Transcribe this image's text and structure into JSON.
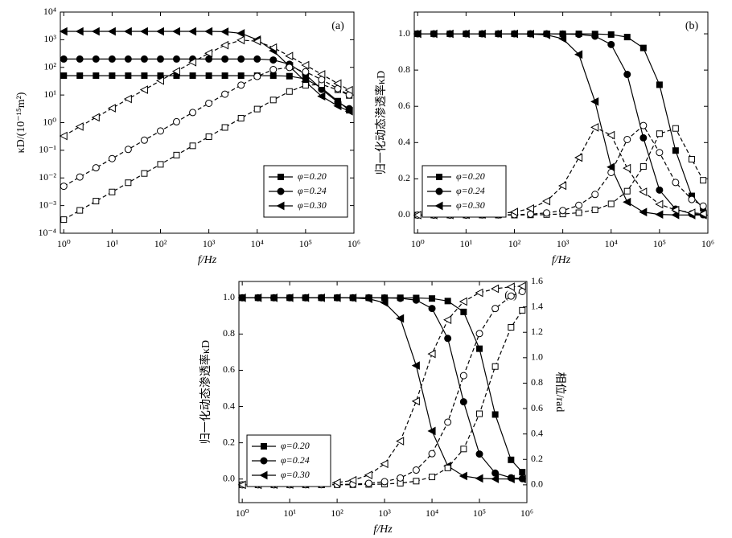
{
  "chart_data": [
    {
      "type": "line",
      "annotation": "(a)",
      "x_label": "f/Hz",
      "y_label": "κD/(10⁻¹⁵m²)",
      "ylog": true,
      "xlog": true,
      "legend": "lower right",
      "xlim": [
        0.85,
        1000000
      ],
      "ylim": [
        0.0001,
        10000
      ],
      "xticks": [
        {
          "value": 1,
          "label": "10⁰"
        },
        {
          "value": 10,
          "label": "10¹"
        },
        {
          "value": 100,
          "label": "10²"
        },
        {
          "value": 1000,
          "label": "10³"
        },
        {
          "value": 10000,
          "label": "10⁴"
        },
        {
          "value": 100000,
          "label": "10⁵"
        },
        {
          "value": 1000000,
          "label": "10⁶"
        }
      ],
      "yticks": [
        {
          "value": 0.0001,
          "label": "10⁻⁴"
        },
        {
          "value": 0.001,
          "label": "10⁻³"
        },
        {
          "value": 0.01,
          "label": "10⁻²"
        },
        {
          "value": 0.1,
          "label": "10⁻¹"
        },
        {
          "value": 1,
          "label": "10⁰"
        },
        {
          "value": 10,
          "label": "10¹"
        },
        {
          "value": 100,
          "label": "10²"
        },
        {
          "value": 1000,
          "label": "10³"
        },
        {
          "value": 10000,
          "label": "10⁴"
        }
      ],
      "x": [
        1,
        2.15,
        4.64,
        10,
        21.5,
        46.4,
        100,
        215,
        464,
        1000,
        2150,
        4640,
        10000,
        21500,
        46400,
        100000,
        215000,
        464000,
        800000
      ],
      "series": [
        {
          "name": "φ=0.20",
          "color": "#000000",
          "marker": "square",
          "filled": true,
          "dash": false,
          "values": [
            50,
            50,
            50,
            50,
            50,
            50,
            50,
            50,
            50,
            50,
            50,
            50,
            50,
            50,
            48,
            38,
            18,
            6,
            2.8
          ]
        },
        {
          "name": "φ=0.24",
          "color": "#000000",
          "marker": "circle",
          "filled": true,
          "dash": false,
          "values": [
            200,
            200,
            200,
            200,
            200,
            200,
            200,
            200,
            200,
            200,
            200,
            200,
            200,
            185,
            130,
            55,
            16,
            5.5,
            3.2
          ]
        },
        {
          "name": "φ=0.30",
          "color": "#000000",
          "marker": "triangle-left",
          "filled": true,
          "dash": false,
          "values": [
            2000,
            2000,
            2000,
            2000,
            2000,
            2000,
            2000,
            2000,
            2000,
            2000,
            1950,
            1700,
            1000,
            400,
            110,
            30,
            9,
            4,
            2.6
          ]
        },
        {
          "color": "#000000",
          "marker": "square",
          "filled": false,
          "dash": true,
          "values": [
            0.00031,
            0.00067,
            0.00145,
            0.0031,
            0.0067,
            0.0145,
            0.031,
            0.067,
            0.145,
            0.31,
            0.67,
            1.45,
            3.1,
            6.6,
            13.4,
            22.5,
            24,
            15.4,
            9.6
          ]
        },
        {
          "color": "#000000",
          "marker": "circle",
          "filled": false,
          "dash": true,
          "values": [
            0.005,
            0.0108,
            0.0232,
            0.05,
            0.1075,
            0.232,
            0.5,
            1.075,
            2.32,
            5.0,
            10.7,
            22.8,
            47,
            83,
            99,
            69,
            36,
            17,
            10
          ]
        },
        {
          "color": "#000000",
          "marker": "triangle-left",
          "filled": false,
          "dash": true,
          "values": [
            0.33,
            0.72,
            1.55,
            3.33,
            7.2,
            15.5,
            33,
            72,
            154,
            324,
            634,
            968,
            882,
            518,
            256,
            120,
            56,
            26,
            15
          ]
        }
      ]
    },
    {
      "type": "line",
      "annotation": "(b)",
      "x_label": "f/Hz",
      "y_label": "归一化动态渗透率κD",
      "ylog": false,
      "xlog": true,
      "legend": "lower left",
      "xlim": [
        0.85,
        1000000
      ],
      "ylim": [
        -0.1,
        1.12
      ],
      "xticks": [
        {
          "value": 1,
          "label": "10⁰"
        },
        {
          "value": 10,
          "label": "10¹"
        },
        {
          "value": 100,
          "label": "10²"
        },
        {
          "value": 1000,
          "label": "10³"
        },
        {
          "value": 10000,
          "label": "10⁴"
        },
        {
          "value": 100000,
          "label": "10⁵"
        },
        {
          "value": 1000000,
          "label": "10⁶"
        }
      ],
      "yticks": [
        {
          "value": 0,
          "label": "0.0"
        },
        {
          "value": 0.2,
          "label": "0.2"
        },
        {
          "value": 0.4,
          "label": "0.4"
        },
        {
          "value": 0.6,
          "label": "0.6"
        },
        {
          "value": 0.8,
          "label": "0.8"
        },
        {
          "value": 1,
          "label": "1.0"
        }
      ],
      "x": [
        1,
        2.15,
        4.64,
        10,
        21.5,
        46.4,
        100,
        215,
        464,
        1000,
        2150,
        4640,
        10000,
        21500,
        46400,
        100000,
        215000,
        464000,
        800000
      ],
      "series": [
        {
          "name": "φ=0.20",
          "color": "#000000",
          "marker": "square",
          "filled": true,
          "dash": false,
          "values": [
            1,
            1,
            1,
            1,
            1,
            1,
            1,
            1,
            1,
            1,
            1,
            0.999,
            0.996,
            0.982,
            0.922,
            0.719,
            0.356,
            0.106,
            0.038
          ]
        },
        {
          "name": "φ=0.24",
          "color": "#000000",
          "marker": "circle",
          "filled": true,
          "dash": false,
          "values": [
            1,
            1,
            1,
            1,
            1,
            1,
            1,
            1,
            1,
            0.999,
            0.997,
            0.987,
            0.941,
            0.776,
            0.426,
            0.138,
            0.033,
            0.007,
            0.002
          ]
        },
        {
          "name": "φ=0.30",
          "color": "#000000",
          "marker": "triangle-left",
          "filled": true,
          "dash": false,
          "values": [
            1,
            1,
            1,
            1,
            1,
            1,
            1,
            0.999,
            0.994,
            0.973,
            0.886,
            0.626,
            0.265,
            0.072,
            0.0165,
            0.0036,
            0.0008,
            0.0002,
            0.0001
          ]
        },
        {
          "color": "#000000",
          "marker": "square",
          "filled": false,
          "dash": true,
          "values": [
            0,
            0,
            0,
            0,
            0,
            0,
            0,
            0.001,
            0.003,
            0.006,
            0.013,
            0.029,
            0.062,
            0.132,
            0.268,
            0.449,
            0.478,
            0.308,
            0.192
          ]
        },
        {
          "color": "#000000",
          "marker": "circle",
          "filled": false,
          "dash": true,
          "values": [
            0,
            0,
            0,
            0,
            0.001,
            0.001,
            0.0025,
            0.005,
            0.012,
            0.025,
            0.054,
            0.114,
            0.235,
            0.417,
            0.494,
            0.345,
            0.18,
            0.086,
            0.05
          ]
        },
        {
          "color": "#000000",
          "marker": "triangle-left",
          "filled": false,
          "dash": true,
          "values": [
            0.0002,
            0.0004,
            0.0008,
            0.0017,
            0.0036,
            0.0077,
            0.017,
            0.036,
            0.077,
            0.162,
            0.317,
            0.484,
            0.441,
            0.259,
            0.128,
            0.06,
            0.028,
            0.013,
            0.0075
          ]
        }
      ]
    },
    {
      "type": "line",
      "annotation": "(c)",
      "x_label": "f/Hz",
      "y_label": "归一化动态渗透率κD",
      "y2_label": "相位/rad",
      "ylog": false,
      "xlog": true,
      "legend": "lower left",
      "xlim": [
        0.85,
        1000000
      ],
      "ylim": [
        -0.13,
        1.09
      ],
      "y2lim": [
        -0.14,
        1.6
      ],
      "xticks": [
        {
          "value": 1,
          "label": "10⁰"
        },
        {
          "value": 10,
          "label": "10¹"
        },
        {
          "value": 100,
          "label": "10²"
        },
        {
          "value": 1000,
          "label": "10³"
        },
        {
          "value": 10000,
          "label": "10⁴"
        },
        {
          "value": 100000,
          "label": "10⁵"
        },
        {
          "value": 1000000,
          "label": "10⁶"
        }
      ],
      "yticks": [
        {
          "value": 0,
          "label": "0.0"
        },
        {
          "value": 0.2,
          "label": "0.2"
        },
        {
          "value": 0.4,
          "label": "0.4"
        },
        {
          "value": 0.6,
          "label": "0.6"
        },
        {
          "value": 0.8,
          "label": "0.8"
        },
        {
          "value": 1,
          "label": "1.0"
        }
      ],
      "y2ticks": [
        {
          "value": 0,
          "label": "0.0"
        },
        {
          "value": 0.2,
          "label": "0.2"
        },
        {
          "value": 0.4,
          "label": "0.4"
        },
        {
          "value": 0.6,
          "label": "0.6"
        },
        {
          "value": 0.8,
          "label": "0.8"
        },
        {
          "value": 1,
          "label": "1.0"
        },
        {
          "value": 1.2,
          "label": "1.2"
        },
        {
          "value": 1.4,
          "label": "1.4"
        },
        {
          "value": 1.6,
          "label": "1.6"
        }
      ],
      "x": [
        1,
        2.15,
        4.64,
        10,
        21.5,
        46.4,
        100,
        215,
        464,
        1000,
        2150,
        4640,
        10000,
        21500,
        46400,
        100000,
        215000,
        464000,
        800000
      ],
      "series": [
        {
          "name": "φ=0.20",
          "color": "#000000",
          "marker": "square",
          "filled": true,
          "dash": false,
          "values": [
            1,
            1,
            1,
            1,
            1,
            1,
            1,
            1,
            1,
            1,
            1,
            0.999,
            0.996,
            0.982,
            0.922,
            0.719,
            0.356,
            0.106,
            0.038
          ]
        },
        {
          "name": "φ=0.24",
          "color": "#000000",
          "marker": "circle",
          "filled": true,
          "dash": false,
          "values": [
            1,
            1,
            1,
            1,
            1,
            1,
            1,
            1,
            1,
            0.999,
            0.997,
            0.987,
            0.941,
            0.776,
            0.426,
            0.138,
            0.033,
            0.007,
            0.002
          ]
        },
        {
          "name": "φ=0.30",
          "color": "#000000",
          "marker": "triangle-left",
          "filled": true,
          "dash": false,
          "values": [
            1,
            1,
            1,
            1,
            1,
            1,
            1,
            0.999,
            0.994,
            0.973,
            0.886,
            0.626,
            0.265,
            0.072,
            0.0165,
            0.0036,
            0.0008,
            0.0002,
            0.0001
          ]
        },
        {
          "color": "#000000",
          "marker": "square",
          "filled": false,
          "dash": true,
          "axis": "y2",
          "values": [
            0,
            0,
            0,
            0,
            0,
            0,
            0.001,
            0.001,
            0.003,
            0.006,
            0.013,
            0.029,
            0.062,
            0.133,
            0.282,
            0.559,
            0.931,
            1.239,
            1.373
          ]
        },
        {
          "color": "#000000",
          "marker": "circle",
          "filled": false,
          "dash": true,
          "axis": "y2",
          "values": [
            0,
            0,
            0,
            0,
            0.001,
            0.001,
            0.0025,
            0.005,
            0.012,
            0.025,
            0.054,
            0.116,
            0.245,
            0.493,
            0.859,
            1.19,
            1.387,
            1.485,
            1.521
          ]
        },
        {
          "color": "#000000",
          "marker": "triangle-left",
          "filled": false,
          "dash": true,
          "axis": "y2",
          "values": [
            0,
            0,
            0.001,
            0.002,
            0.004,
            0.008,
            0.017,
            0.036,
            0.077,
            0.165,
            0.344,
            0.658,
            1.03,
            1.298,
            1.442,
            1.511,
            1.543,
            1.558,
            1.563
          ]
        }
      ]
    }
  ]
}
